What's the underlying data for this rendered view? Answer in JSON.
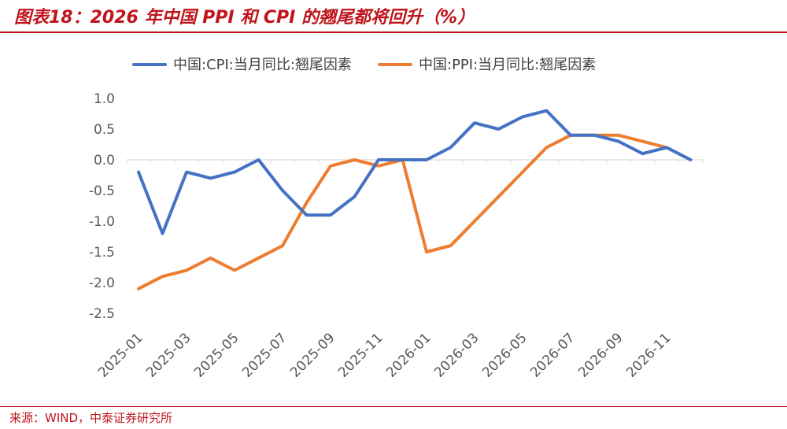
{
  "title": "图表18：2026 年中国 PPI 和 CPI 的翘尾都将回升（%）",
  "source": "来源：WIND，中泰证券研究所",
  "chart_data": {
    "type": "line",
    "title": "",
    "xlabel": "",
    "ylabel": "",
    "ylim": [
      -2.5,
      1.0
    ],
    "yticks": [
      "1.0",
      "0.5",
      "0.0",
      "-0.5",
      "-1.0",
      "-1.5",
      "-2.0",
      "-2.5"
    ],
    "ytick_values": [
      1.0,
      0.5,
      0.0,
      -0.5,
      -1.0,
      -1.5,
      -2.0,
      -2.5
    ],
    "x": [
      "2025-01",
      "2025-02",
      "2025-03",
      "2025-04",
      "2025-05",
      "2025-06",
      "2025-07",
      "2025-08",
      "2025-09",
      "2025-10",
      "2025-11",
      "2025-12",
      "2026-01",
      "2026-02",
      "2026-03",
      "2026-04",
      "2026-05",
      "2026-06",
      "2026-07",
      "2026-08",
      "2026-09",
      "2026-10",
      "2026-11",
      "2026-12"
    ],
    "xtick_labels": [
      "2025-01",
      "2025-03",
      "2025-05",
      "2025-07",
      "2025-09",
      "2025-11",
      "2026-01",
      "2026-03",
      "2026-05",
      "2026-07",
      "2026-09",
      "2026-11"
    ],
    "legend_position": "top",
    "grid": false,
    "series": [
      {
        "name": "中国:CPI:当月同比:翘尾因素",
        "color": "#4472c4",
        "values": [
          -0.2,
          -1.2,
          -0.2,
          -0.3,
          -0.2,
          0.0,
          -0.5,
          -0.9,
          -0.9,
          -0.6,
          0.0,
          0.0,
          0.0,
          0.2,
          0.6,
          0.5,
          0.7,
          0.8,
          0.4,
          0.4,
          0.3,
          0.1,
          0.2,
          0.0
        ]
      },
      {
        "name": "中国:PPI:当月同比:翘尾因素",
        "color": "#ed7d31",
        "values": [
          -2.1,
          -1.9,
          -1.8,
          -1.6,
          -1.8,
          -1.6,
          -1.4,
          -0.7,
          -0.1,
          0.0,
          -0.1,
          0.0,
          -1.5,
          -1.4,
          -1.0,
          -0.6,
          -0.2,
          0.2,
          0.4,
          0.4,
          0.4,
          0.3,
          0.2,
          0.0
        ]
      }
    ]
  }
}
